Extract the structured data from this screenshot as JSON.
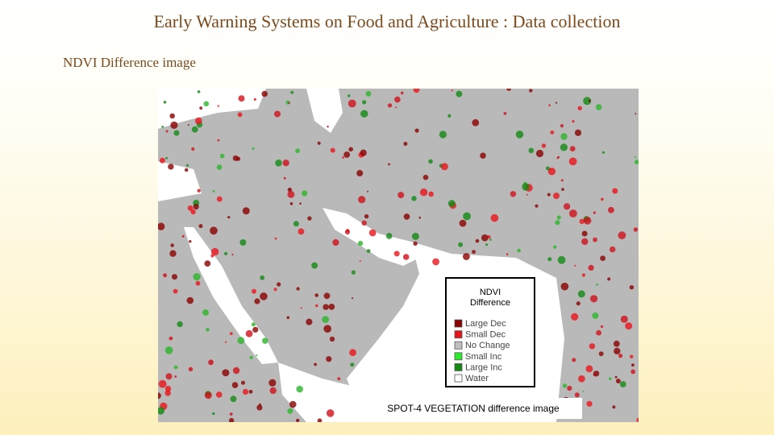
{
  "header": {
    "title": "Early Warning Systems on Food and Agriculture : Data collection",
    "subtitle": "NDVI Difference image"
  },
  "map": {
    "legend": {
      "title": "NDVI Difference",
      "items": [
        {
          "label": "Large Dec",
          "color": "#8b0000"
        },
        {
          "label": "Small Dec",
          "color": "#e8141c"
        },
        {
          "label": "No Change",
          "color": "#c0c0c0"
        },
        {
          "label": "Small Inc",
          "color": "#2ee82e"
        },
        {
          "label": "Large Inc",
          "color": "#138a13"
        },
        {
          "label": "Water",
          "color": "#ffffff"
        }
      ]
    },
    "caption": "SPOT-4 VEGETATION difference image"
  }
}
